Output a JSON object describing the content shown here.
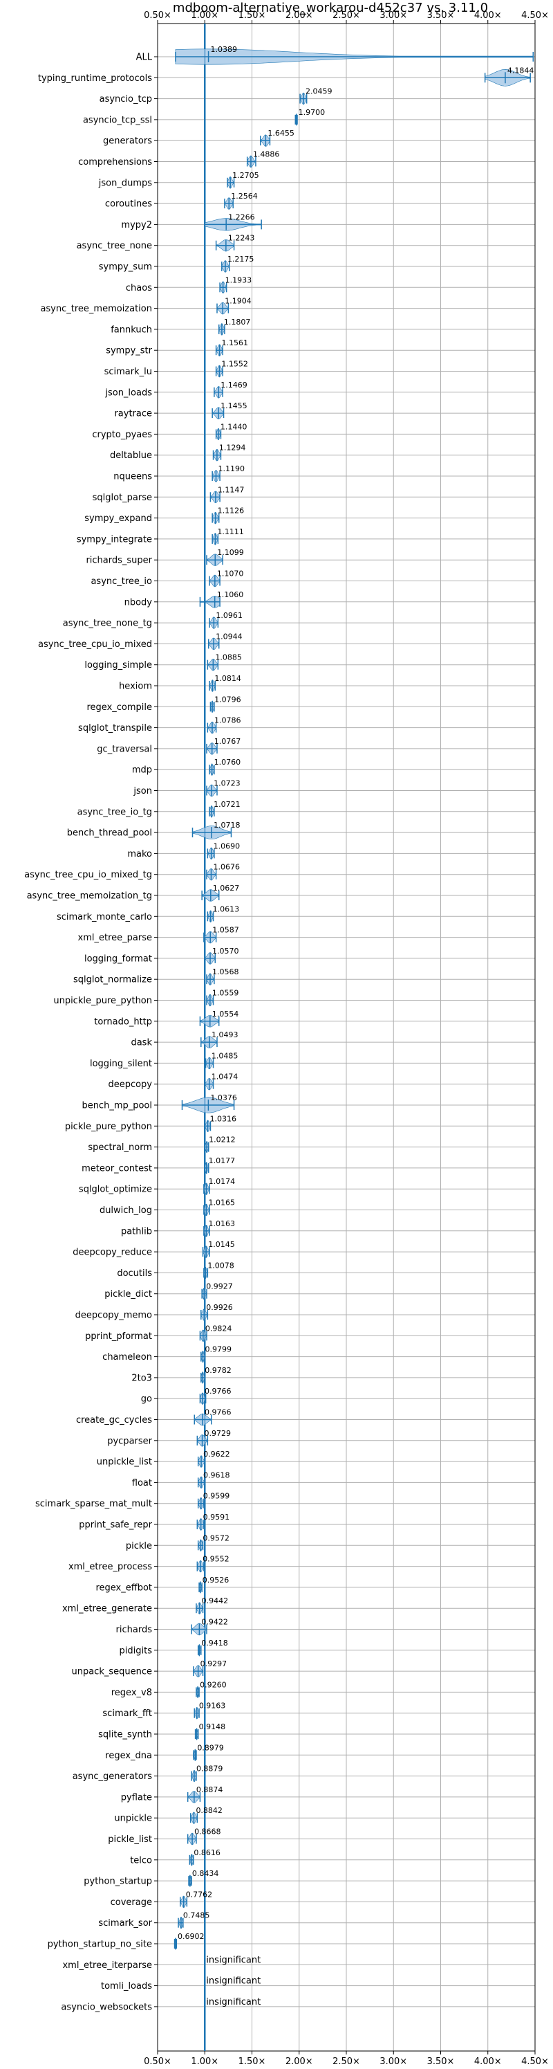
{
  "chart_data": {
    "type": "violin",
    "title": "mdboom-alternative_workarou-d452c37 vs. 3.11.0",
    "xlim": [
      0.5,
      4.5
    ],
    "xticks": [
      0.5,
      1.0,
      1.5,
      2.0,
      2.5,
      3.0,
      3.5,
      4.0,
      4.5
    ],
    "xtick_labels": [
      "0.50×",
      "1.00×",
      "1.50×",
      "2.00×",
      "2.50×",
      "3.00×",
      "3.50×",
      "4.00×",
      "4.50×"
    ],
    "reference_line": 1.0,
    "grid": true,
    "colors": {
      "mark": "#1f77b4",
      "fill": "#9ec3e4",
      "grid": "#b0b0b0"
    },
    "insignificant_label": "insignificant",
    "benchmarks": [
      {
        "name": "ALL",
        "value": 1.0389,
        "min": 0.69,
        "max": 4.48,
        "label": "1.0389",
        "wide": 0.9
      },
      {
        "name": "typing_runtime_protocols",
        "value": 4.1844,
        "min": 3.97,
        "max": 4.45,
        "label": "4.1844",
        "wide": 1.0
      },
      {
        "name": "asyncio_tcp",
        "value": 2.0459,
        "min": 2.01,
        "max": 2.08,
        "label": "2.0459"
      },
      {
        "name": "asyncio_tcp_ssl",
        "value": 1.97,
        "min": 1.96,
        "max": 1.98,
        "label": "1.9700"
      },
      {
        "name": "generators",
        "value": 1.6455,
        "min": 1.59,
        "max": 1.69,
        "label": "1.6455"
      },
      {
        "name": "comprehensions",
        "value": 1.4886,
        "min": 1.45,
        "max": 1.54,
        "label": "1.4886"
      },
      {
        "name": "json_dumps",
        "value": 1.2705,
        "min": 1.24,
        "max": 1.31,
        "label": "1.2705"
      },
      {
        "name": "coroutines",
        "value": 1.2564,
        "min": 1.21,
        "max": 1.3,
        "label": "1.2564"
      },
      {
        "name": "mypy2",
        "value": 1.2266,
        "min": 1.0,
        "max": 1.6,
        "label": "1.2266",
        "wide": 0.6
      },
      {
        "name": "async_tree_none",
        "value": 1.2243,
        "min": 1.12,
        "max": 1.31,
        "label": "1.2243"
      },
      {
        "name": "sympy_sum",
        "value": 1.2175,
        "min": 1.18,
        "max": 1.26,
        "label": "1.2175"
      },
      {
        "name": "chaos",
        "value": 1.1933,
        "min": 1.16,
        "max": 1.23,
        "label": "1.1933"
      },
      {
        "name": "async_tree_memoization",
        "value": 1.1904,
        "min": 1.13,
        "max": 1.25,
        "label": "1.1904"
      },
      {
        "name": "fannkuch",
        "value": 1.1807,
        "min": 1.15,
        "max": 1.21,
        "label": "1.1807"
      },
      {
        "name": "sympy_str",
        "value": 1.1561,
        "min": 1.12,
        "max": 1.19,
        "label": "1.1561"
      },
      {
        "name": "scimark_lu",
        "value": 1.1552,
        "min": 1.12,
        "max": 1.19,
        "label": "1.1552"
      },
      {
        "name": "json_loads",
        "value": 1.1469,
        "min": 1.1,
        "max": 1.19,
        "label": "1.1469"
      },
      {
        "name": "raytrace",
        "value": 1.1455,
        "min": 1.08,
        "max": 1.2,
        "label": "1.1455"
      },
      {
        "name": "crypto_pyaes",
        "value": 1.144,
        "min": 1.12,
        "max": 1.17,
        "label": "1.1440"
      },
      {
        "name": "deltablue",
        "value": 1.1294,
        "min": 1.09,
        "max": 1.17,
        "label": "1.1294"
      },
      {
        "name": "nqueens",
        "value": 1.119,
        "min": 1.08,
        "max": 1.16,
        "label": "1.1190"
      },
      {
        "name": "sqlglot_parse",
        "value": 1.1147,
        "min": 1.06,
        "max": 1.16,
        "label": "1.1147"
      },
      {
        "name": "sympy_expand",
        "value": 1.1126,
        "min": 1.08,
        "max": 1.15,
        "label": "1.1126"
      },
      {
        "name": "sympy_integrate",
        "value": 1.1111,
        "min": 1.08,
        "max": 1.14,
        "label": "1.1111"
      },
      {
        "name": "richards_super",
        "value": 1.1099,
        "min": 1.02,
        "max": 1.19,
        "label": "1.1099"
      },
      {
        "name": "async_tree_io",
        "value": 1.107,
        "min": 1.05,
        "max": 1.16,
        "label": "1.1070"
      },
      {
        "name": "nbody",
        "value": 1.106,
        "min": 0.95,
        "max": 1.16,
        "label": "1.1060"
      },
      {
        "name": "async_tree_none_tg",
        "value": 1.0961,
        "min": 1.05,
        "max": 1.14,
        "label": "1.0961"
      },
      {
        "name": "async_tree_cpu_io_mixed",
        "value": 1.0944,
        "min": 1.04,
        "max": 1.15,
        "label": "1.0944"
      },
      {
        "name": "logging_simple",
        "value": 1.0885,
        "min": 1.03,
        "max": 1.14,
        "label": "1.0885"
      },
      {
        "name": "hexiom",
        "value": 1.0814,
        "min": 1.05,
        "max": 1.11,
        "label": "1.0814"
      },
      {
        "name": "regex_compile",
        "value": 1.0796,
        "min": 1.06,
        "max": 1.1,
        "label": "1.0796"
      },
      {
        "name": "sqlglot_transpile",
        "value": 1.0786,
        "min": 1.03,
        "max": 1.12,
        "label": "1.0786"
      },
      {
        "name": "gc_traversal",
        "value": 1.0767,
        "min": 1.02,
        "max": 1.13,
        "label": "1.0767"
      },
      {
        "name": "mdp",
        "value": 1.076,
        "min": 1.05,
        "max": 1.1,
        "label": "1.0760"
      },
      {
        "name": "json",
        "value": 1.0723,
        "min": 1.02,
        "max": 1.13,
        "label": "1.0723"
      },
      {
        "name": "async_tree_io_tg",
        "value": 1.0721,
        "min": 1.05,
        "max": 1.1,
        "label": "1.0721"
      },
      {
        "name": "bench_thread_pool",
        "value": 1.0718,
        "min": 0.87,
        "max": 1.28,
        "label": "1.0718",
        "wide": 0.7
      },
      {
        "name": "mako",
        "value": 1.069,
        "min": 1.03,
        "max": 1.1,
        "label": "1.0690"
      },
      {
        "name": "async_tree_cpu_io_mixed_tg",
        "value": 1.0676,
        "min": 1.02,
        "max": 1.12,
        "label": "1.0676"
      },
      {
        "name": "async_tree_memoization_tg",
        "value": 1.0627,
        "min": 0.97,
        "max": 1.15,
        "label": "1.0627"
      },
      {
        "name": "scimark_monte_carlo",
        "value": 1.0613,
        "min": 1.03,
        "max": 1.09,
        "label": "1.0613"
      },
      {
        "name": "xml_etree_parse",
        "value": 1.0587,
        "min": 0.99,
        "max": 1.12,
        "label": "1.0587"
      },
      {
        "name": "logging_format",
        "value": 1.057,
        "min": 1.0,
        "max": 1.11,
        "label": "1.0570"
      },
      {
        "name": "sqlglot_normalize",
        "value": 1.0568,
        "min": 1.02,
        "max": 1.1,
        "label": "1.0568"
      },
      {
        "name": "unpickle_pure_python",
        "value": 1.0559,
        "min": 1.02,
        "max": 1.09,
        "label": "1.0559"
      },
      {
        "name": "tornado_http",
        "value": 1.0554,
        "min": 0.95,
        "max": 1.15,
        "label": "1.0554"
      },
      {
        "name": "dask",
        "value": 1.0493,
        "min": 0.96,
        "max": 1.13,
        "label": "1.0493"
      },
      {
        "name": "logging_silent",
        "value": 1.0485,
        "min": 1.01,
        "max": 1.09,
        "label": "1.0485"
      },
      {
        "name": "deepcopy",
        "value": 1.0474,
        "min": 1.0,
        "max": 1.09,
        "label": "1.0474"
      },
      {
        "name": "bench_mp_pool",
        "value": 1.0376,
        "min": 0.76,
        "max": 1.31,
        "label": "1.0376",
        "wide": 0.9
      },
      {
        "name": "pickle_pure_python",
        "value": 1.0316,
        "min": 1.0,
        "max": 1.06,
        "label": "1.0316"
      },
      {
        "name": "spectral_norm",
        "value": 1.0212,
        "min": 1.0,
        "max": 1.04,
        "label": "1.0212"
      },
      {
        "name": "meteor_contest",
        "value": 1.0177,
        "min": 1.0,
        "max": 1.04,
        "label": "1.0177"
      },
      {
        "name": "sqlglot_optimize",
        "value": 1.0174,
        "min": 0.99,
        "max": 1.05,
        "label": "1.0174"
      },
      {
        "name": "dulwich_log",
        "value": 1.0165,
        "min": 0.99,
        "max": 1.05,
        "label": "1.0165"
      },
      {
        "name": "pathlib",
        "value": 1.0163,
        "min": 0.99,
        "max": 1.05,
        "label": "1.0163"
      },
      {
        "name": "deepcopy_reduce",
        "value": 1.0145,
        "min": 0.98,
        "max": 1.05,
        "label": "1.0145"
      },
      {
        "name": "docutils",
        "value": 1.0078,
        "min": 0.99,
        "max": 1.03,
        "label": "1.0078"
      },
      {
        "name": "pickle_dict",
        "value": 0.9927,
        "min": 0.97,
        "max": 1.02,
        "label": "0.9927"
      },
      {
        "name": "deepcopy_memo",
        "value": 0.9926,
        "min": 0.96,
        "max": 1.03,
        "label": "0.9926"
      },
      {
        "name": "pprint_pformat",
        "value": 0.9824,
        "min": 0.95,
        "max": 1.02,
        "label": "0.9824"
      },
      {
        "name": "chameleon",
        "value": 0.9799,
        "min": 0.96,
        "max": 1.0,
        "label": "0.9799"
      },
      {
        "name": "2to3",
        "value": 0.9782,
        "min": 0.96,
        "max": 1.0,
        "label": "0.9782"
      },
      {
        "name": "go",
        "value": 0.9766,
        "min": 0.95,
        "max": 1.01,
        "label": "0.9766"
      },
      {
        "name": "create_gc_cycles",
        "value": 0.9766,
        "min": 0.89,
        "max": 1.07,
        "label": "0.9766"
      },
      {
        "name": "pycparser",
        "value": 0.9729,
        "min": 0.92,
        "max": 1.03,
        "label": "0.9729"
      },
      {
        "name": "unpickle_list",
        "value": 0.9622,
        "min": 0.93,
        "max": 1.0,
        "label": "0.9622"
      },
      {
        "name": "float",
        "value": 0.9618,
        "min": 0.93,
        "max": 1.0,
        "label": "0.9618"
      },
      {
        "name": "scimark_sparse_mat_mult",
        "value": 0.9599,
        "min": 0.93,
        "max": 0.99,
        "label": "0.9599"
      },
      {
        "name": "pprint_safe_repr",
        "value": 0.9591,
        "min": 0.92,
        "max": 0.99,
        "label": "0.9591"
      },
      {
        "name": "pickle",
        "value": 0.9572,
        "min": 0.93,
        "max": 0.98,
        "label": "0.9572"
      },
      {
        "name": "xml_etree_process",
        "value": 0.9552,
        "min": 0.92,
        "max": 0.99,
        "label": "0.9552"
      },
      {
        "name": "regex_effbot",
        "value": 0.9526,
        "min": 0.94,
        "max": 0.97,
        "label": "0.9526"
      },
      {
        "name": "xml_etree_generate",
        "value": 0.9442,
        "min": 0.91,
        "max": 0.98,
        "label": "0.9442"
      },
      {
        "name": "richards",
        "value": 0.9422,
        "min": 0.86,
        "max": 1.02,
        "label": "0.9422"
      },
      {
        "name": "pidigits",
        "value": 0.9418,
        "min": 0.93,
        "max": 0.96,
        "label": "0.9418"
      },
      {
        "name": "unpack_sequence",
        "value": 0.9297,
        "min": 0.88,
        "max": 0.98,
        "label": "0.9297"
      },
      {
        "name": "regex_v8",
        "value": 0.926,
        "min": 0.91,
        "max": 0.94,
        "label": "0.9260"
      },
      {
        "name": "scimark_fft",
        "value": 0.9163,
        "min": 0.89,
        "max": 0.94,
        "label": "0.9163"
      },
      {
        "name": "sqlite_synth",
        "value": 0.9148,
        "min": 0.9,
        "max": 0.93,
        "label": "0.9148"
      },
      {
        "name": "regex_dna",
        "value": 0.8979,
        "min": 0.88,
        "max": 0.91,
        "label": "0.8979"
      },
      {
        "name": "async_generators",
        "value": 0.8879,
        "min": 0.86,
        "max": 0.91,
        "label": "0.8879"
      },
      {
        "name": "pyflate",
        "value": 0.8874,
        "min": 0.82,
        "max": 0.95,
        "label": "0.8874"
      },
      {
        "name": "unpickle",
        "value": 0.8842,
        "min": 0.85,
        "max": 0.92,
        "label": "0.8842"
      },
      {
        "name": "pickle_list",
        "value": 0.8668,
        "min": 0.82,
        "max": 0.91,
        "label": "0.8668"
      },
      {
        "name": "telco",
        "value": 0.8616,
        "min": 0.84,
        "max": 0.88,
        "label": "0.8616"
      },
      {
        "name": "python_startup",
        "value": 0.8434,
        "min": 0.83,
        "max": 0.86,
        "label": "0.8434"
      },
      {
        "name": "coverage",
        "value": 0.7762,
        "min": 0.74,
        "max": 0.81,
        "label": "0.7762"
      },
      {
        "name": "scimark_sor",
        "value": 0.7485,
        "min": 0.72,
        "max": 0.77,
        "label": "0.7485"
      },
      {
        "name": "python_startup_no_site",
        "value": 0.6902,
        "min": 0.68,
        "max": 0.7,
        "label": "0.6902"
      },
      {
        "name": "xml_etree_iterparse",
        "insignificant": true
      },
      {
        "name": "tomli_loads",
        "insignificant": true
      },
      {
        "name": "asyncio_websockets",
        "insignificant": true
      }
    ]
  }
}
